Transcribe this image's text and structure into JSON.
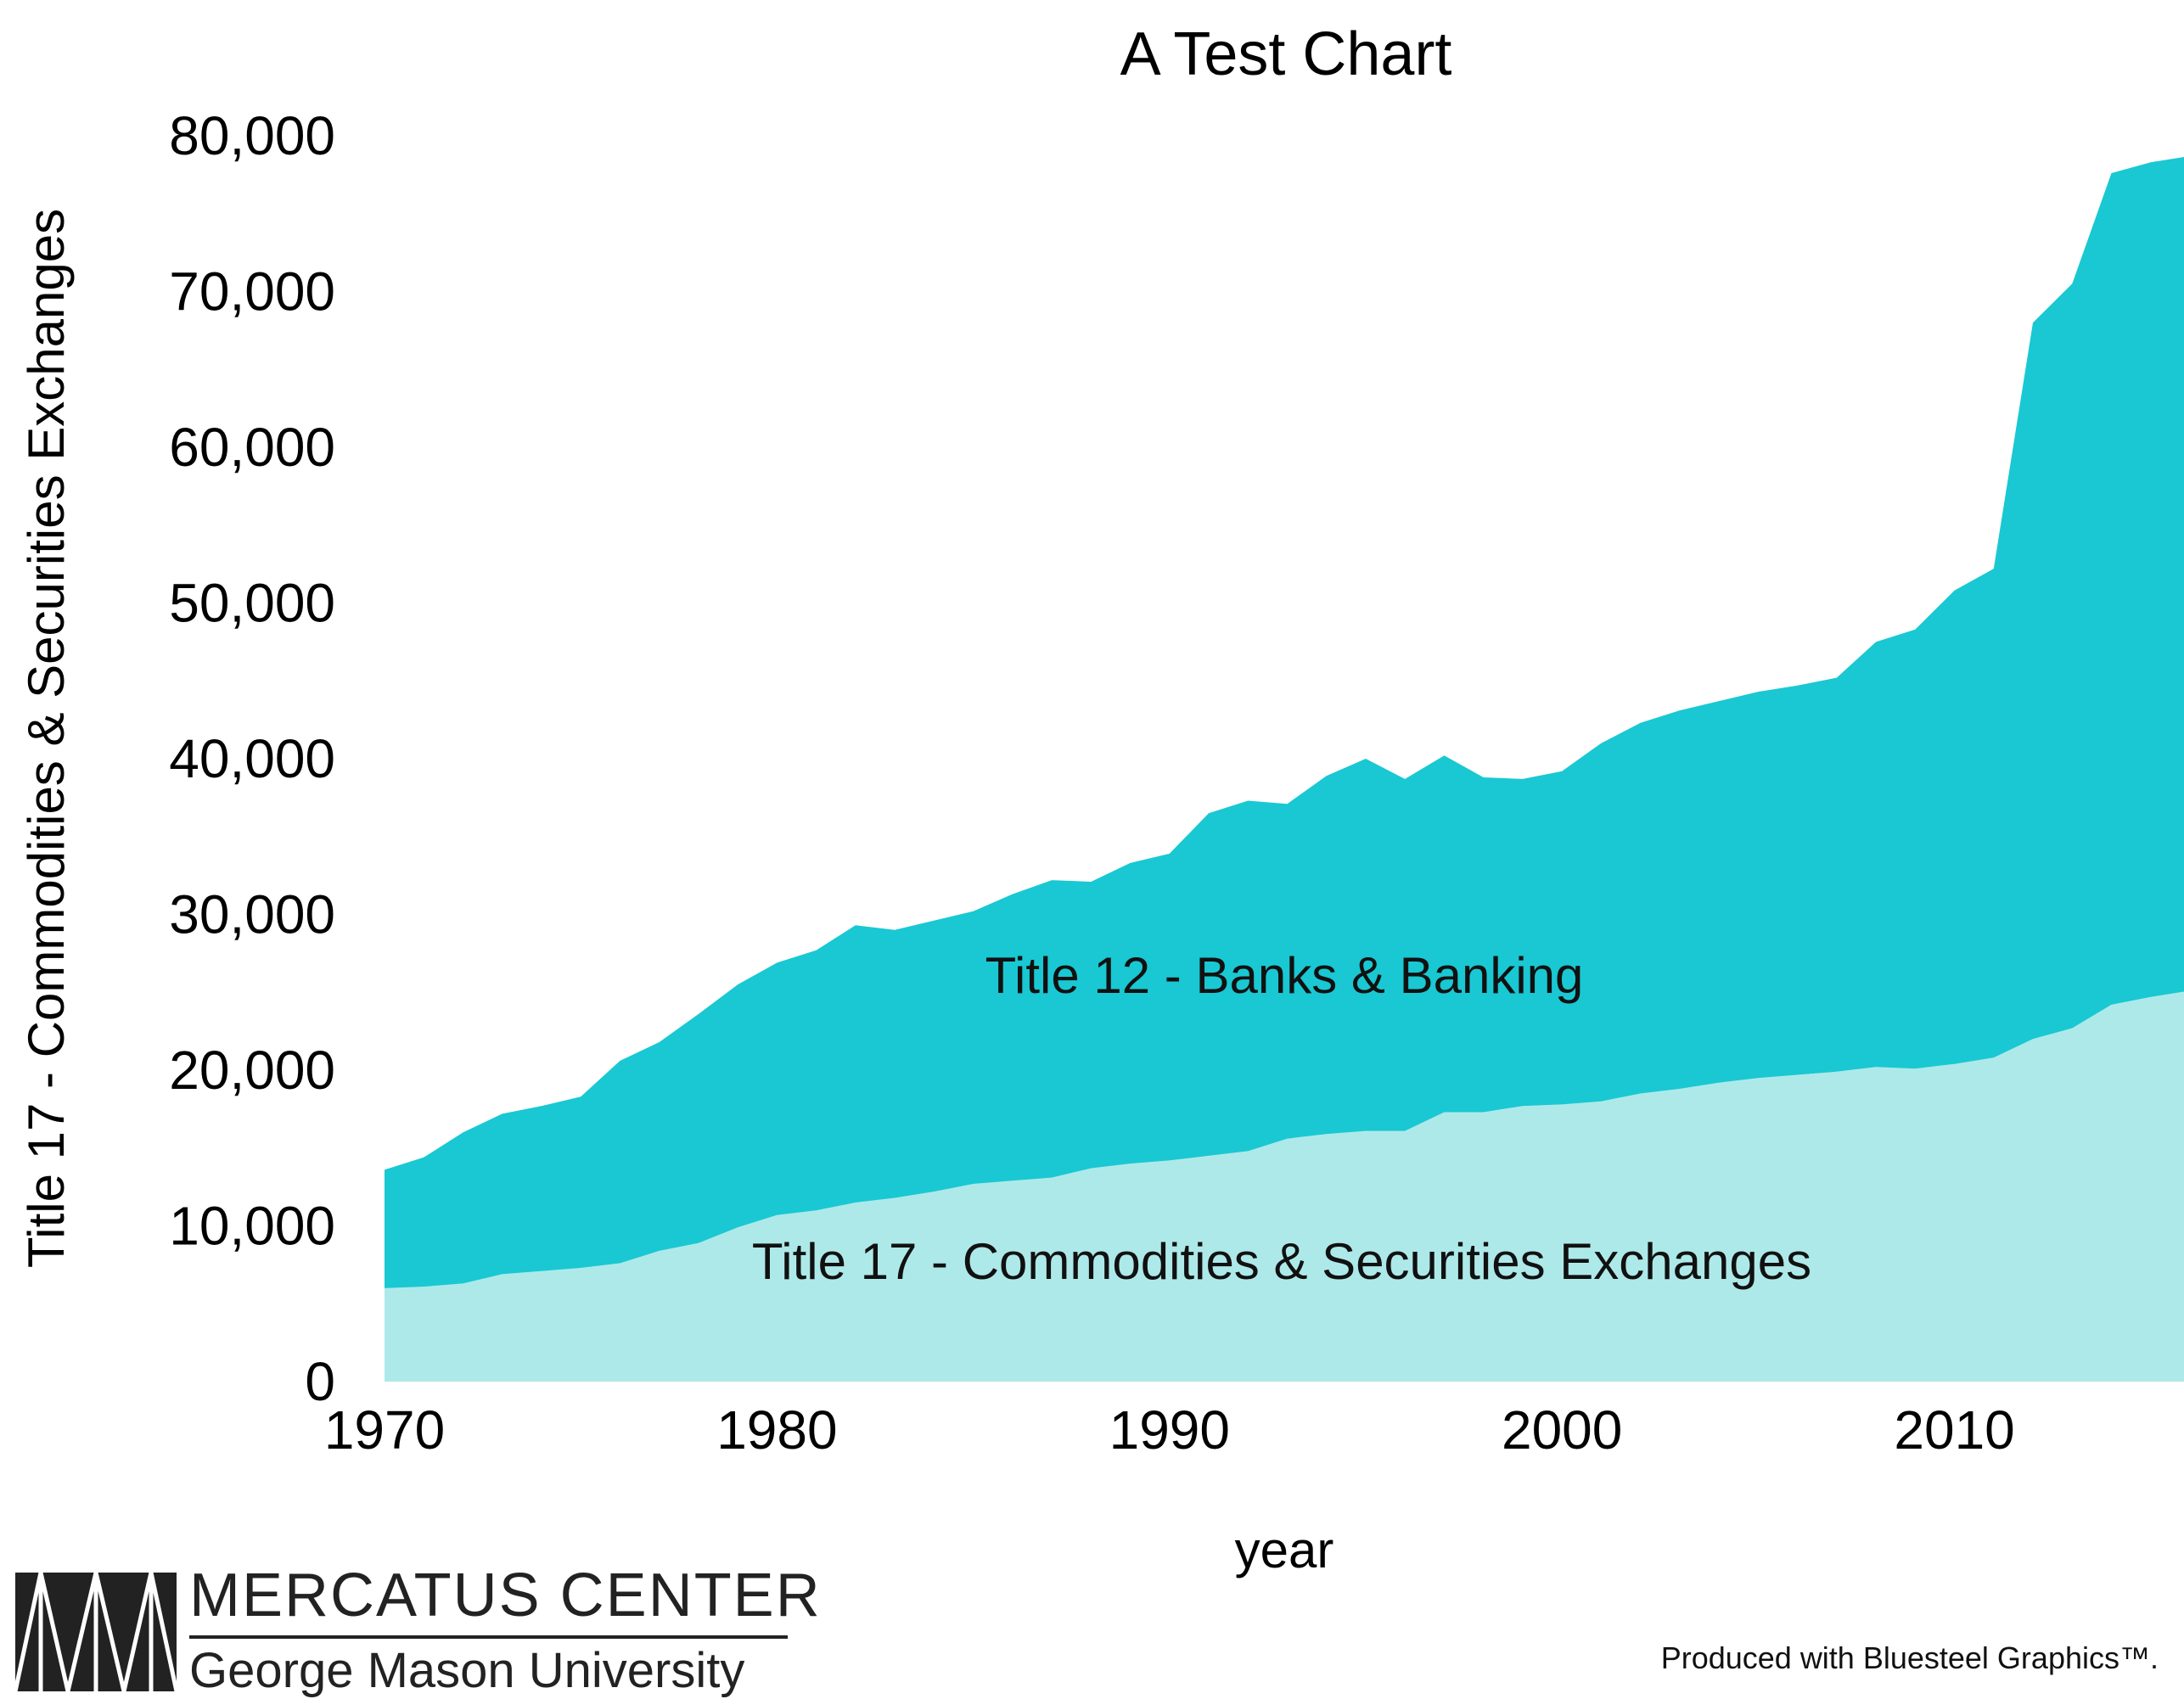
{
  "chart_data": {
    "type": "area",
    "stacked": true,
    "title": "A Test Chart",
    "xlabel": "year",
    "ylabel": "Title 17 - Commodities & Securities Exchanges",
    "xlim": [
      1970,
      2016
    ],
    "ylim": [
      0,
      80000
    ],
    "x_ticks": [
      "1970",
      "1980",
      "1990",
      "2000",
      "2010"
    ],
    "y_ticks": [
      "0",
      "10,000",
      "20,000",
      "30,000",
      "40,000",
      "50,000",
      "60,000",
      "70,000",
      "80,000"
    ],
    "x": [
      1970,
      1971,
      1972,
      1973,
      1974,
      1975,
      1976,
      1977,
      1978,
      1979,
      1980,
      1981,
      1982,
      1983,
      1984,
      1985,
      1986,
      1987,
      1988,
      1989,
      1990,
      1991,
      1992,
      1993,
      1994,
      1995,
      1996,
      1997,
      1998,
      1999,
      2000,
      2001,
      2002,
      2003,
      2004,
      2005,
      2006,
      2007,
      2008,
      2009,
      2010,
      2011,
      2012,
      2013,
      2014,
      2015,
      2016
    ],
    "series": [
      {
        "name": "Title 17 - Commodities & Securities Exchanges",
        "color": "#aee9e9",
        "values": [
          6000,
          6100,
          6300,
          6900,
          7100,
          7300,
          7600,
          8400,
          8900,
          9900,
          10700,
          11000,
          11500,
          11800,
          12200,
          12700,
          12900,
          13100,
          13700,
          14000,
          14200,
          14500,
          14800,
          15600,
          15900,
          16100,
          16100,
          17300,
          17300,
          17700,
          17800,
          18000,
          18500,
          18800,
          19200,
          19500,
          19700,
          19900,
          20200,
          20100,
          20400,
          20800,
          22000,
          22700,
          24200,
          24700,
          25100
        ]
      },
      {
        "name": "Title 12 - Banks & Banking",
        "color": "#19c8d2",
        "values": [
          7600,
          8300,
          9700,
          10300,
          10600,
          11000,
          13000,
          13400,
          14700,
          15600,
          16200,
          16700,
          17800,
          17200,
          17400,
          17500,
          18400,
          19100,
          18400,
          19300,
          19700,
          22000,
          22500,
          21500,
          23000,
          23900,
          22600,
          22900,
          21500,
          21000,
          21400,
          23000,
          23800,
          24300,
          24500,
          24800,
          25000,
          25300,
          27300,
          28200,
          30400,
          31400,
          46000,
          47800,
          53400,
          53600,
          53600
        ]
      }
    ]
  },
  "credit": "Produced with Bluesteel Graphics™.",
  "logo": {
    "line1": "MERCATUS CENTER",
    "line2": "George Mason University"
  }
}
